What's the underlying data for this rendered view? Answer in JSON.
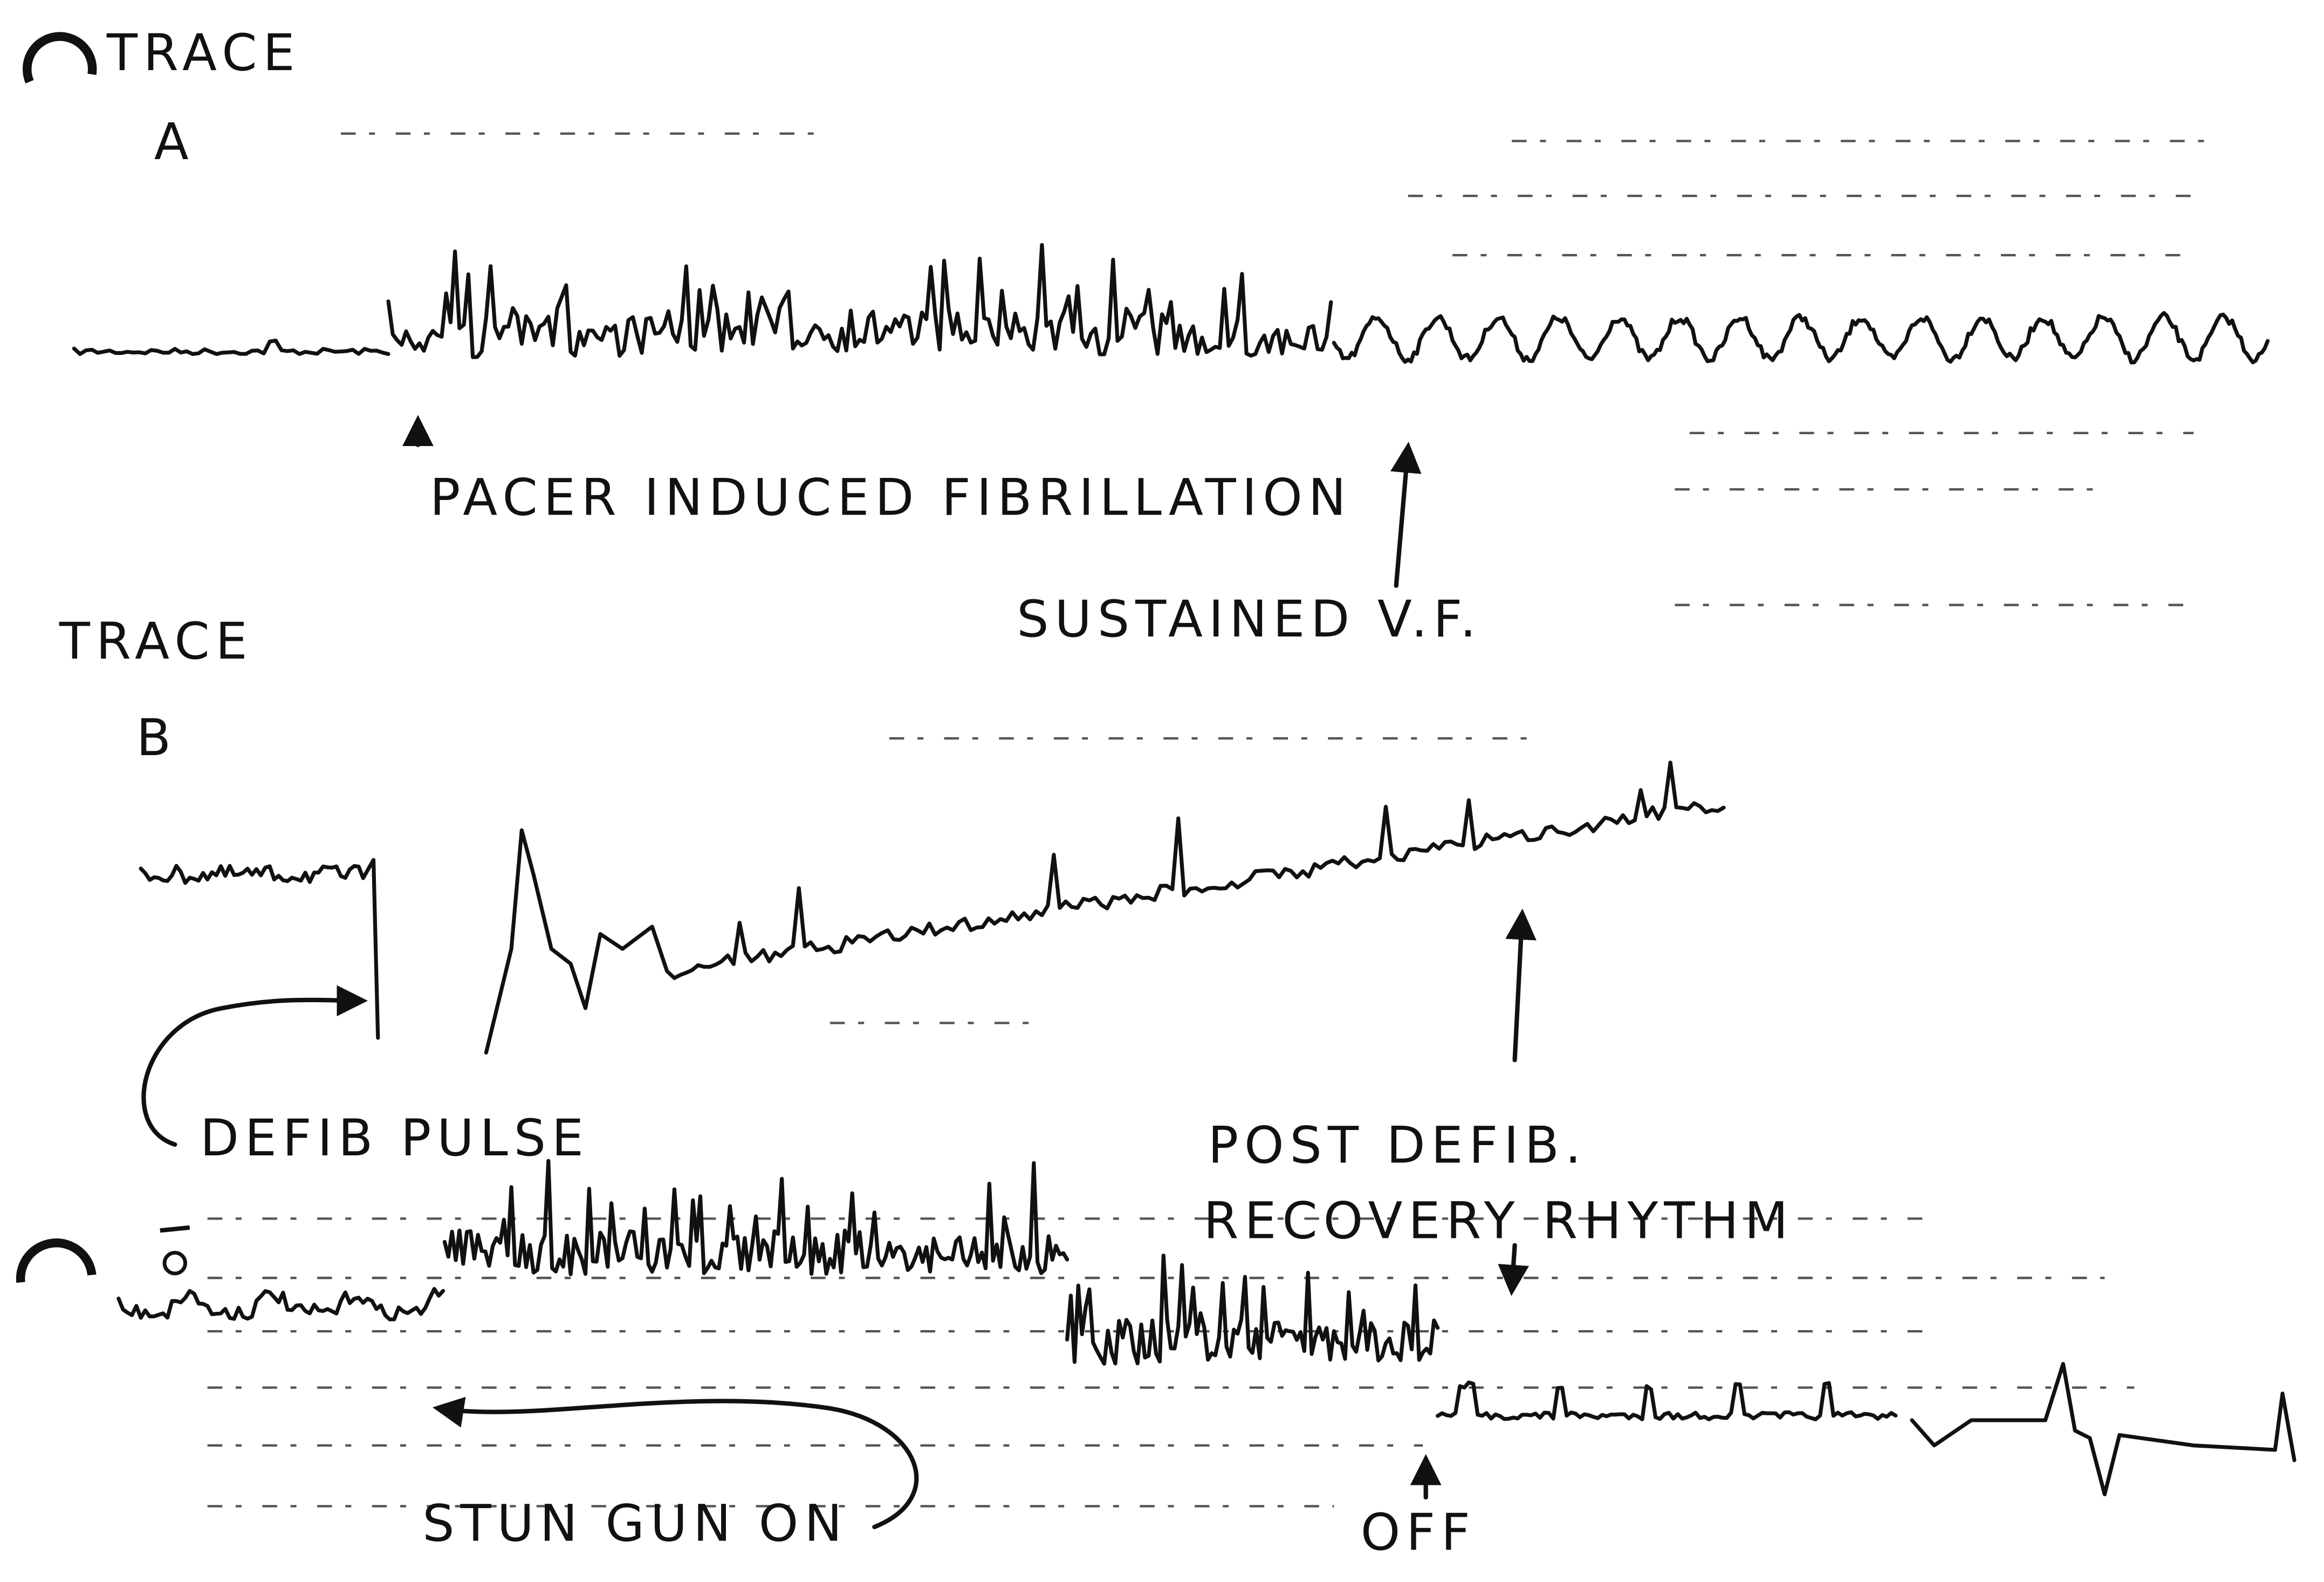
{
  "traces": [
    {
      "title": "TRACE",
      "label": "A"
    },
    {
      "title": "TRACE",
      "label": "B"
    }
  ],
  "annotations": {
    "pacer": "PACER INDUCED FIBRILLATION",
    "sustained": "SUSTAINED V.F.",
    "defib": "DEFIB PULSE",
    "post_defib": "POST DEFIB.",
    "recovery": "RECOVERY RHYTHM",
    "stun_on": "STUN GUN ON",
    "stun_off": "OFF"
  }
}
